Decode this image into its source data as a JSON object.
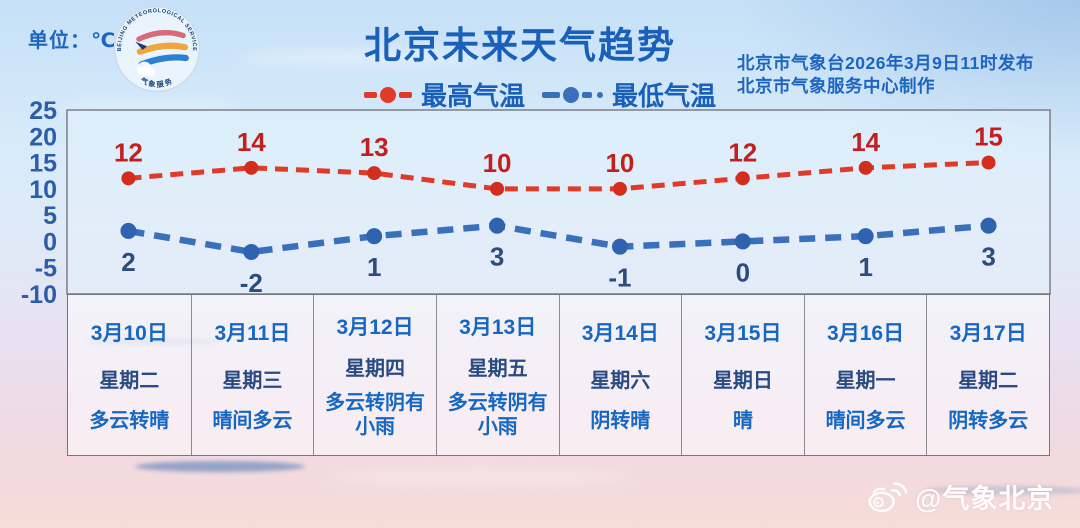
{
  "header": {
    "unit_label": "单位：℃",
    "title": "北京未来天气趋势",
    "issued_line1": "北京市气象台2026年3月9日11时发布",
    "issued_line2": "北京市气象服务中心制作",
    "logo_text_top": "BEIJING METEOROLOGICAL SERVICE",
    "logo_text_bottom": "气象服务"
  },
  "legend": [
    {
      "label": "最高气温",
      "color": "#e23a29"
    },
    {
      "label": "最低气温",
      "color": "#3a6fbc"
    }
  ],
  "chart_data": {
    "type": "line",
    "title": "北京未来天气趋势",
    "categories": [
      "3月10日",
      "3月11日",
      "3月12日",
      "3月13日",
      "3月14日",
      "3月15日",
      "3月16日",
      "3月17日"
    ],
    "series": [
      {
        "name": "最高气温",
        "values": [
          12,
          14,
          13,
          10,
          10,
          12,
          14,
          15
        ],
        "color": "#e23a29",
        "marker_color": "#d22d1d",
        "label_color": "#c41f1f",
        "style": "dashed"
      },
      {
        "name": "最低气温",
        "values": [
          2,
          -2,
          1,
          3,
          -1,
          0,
          1,
          3
        ],
        "color": "#3a6fbc",
        "marker_color": "#2f63b0",
        "label_color": "#2b4c7c",
        "style": "dashed"
      }
    ],
    "ylim": [
      -10,
      25
    ],
    "yticks": [
      25,
      20,
      15,
      10,
      5,
      0,
      -5,
      -10
    ],
    "ylabel": "℃",
    "xlabel": "",
    "grid": false,
    "legend_position": "top"
  },
  "table": {
    "columns": [
      {
        "date": "3月10日",
        "weekday": "星期二",
        "weather": "多云转晴"
      },
      {
        "date": "3月11日",
        "weekday": "星期三",
        "weather": "晴间多云"
      },
      {
        "date": "3月12日",
        "weekday": "星期四",
        "weather": "多云转阴有小雨"
      },
      {
        "date": "3月13日",
        "weekday": "星期五",
        "weather": "多云转阴有小雨"
      },
      {
        "date": "3月14日",
        "weekday": "星期六",
        "weather": "阴转晴"
      },
      {
        "date": "3月15日",
        "weekday": "星期日",
        "weather": "晴"
      },
      {
        "date": "3月16日",
        "weekday": "星期一",
        "weather": "晴间多云"
      },
      {
        "date": "3月17日",
        "weekday": "星期二",
        "weather": "阴转多云"
      }
    ]
  },
  "watermark": {
    "handle": "@气象北京",
    "icon": "weibo-icon"
  },
  "colors": {
    "title_blue": "#1a60ba",
    "axis_blue": "#2c5da8",
    "date_blue": "#1667c3",
    "weekday_navy": "#2a4b82",
    "high_line_red": "#e23a29",
    "low_line_blue": "#3a6fbc",
    "border_gray": "#8a8a92"
  }
}
